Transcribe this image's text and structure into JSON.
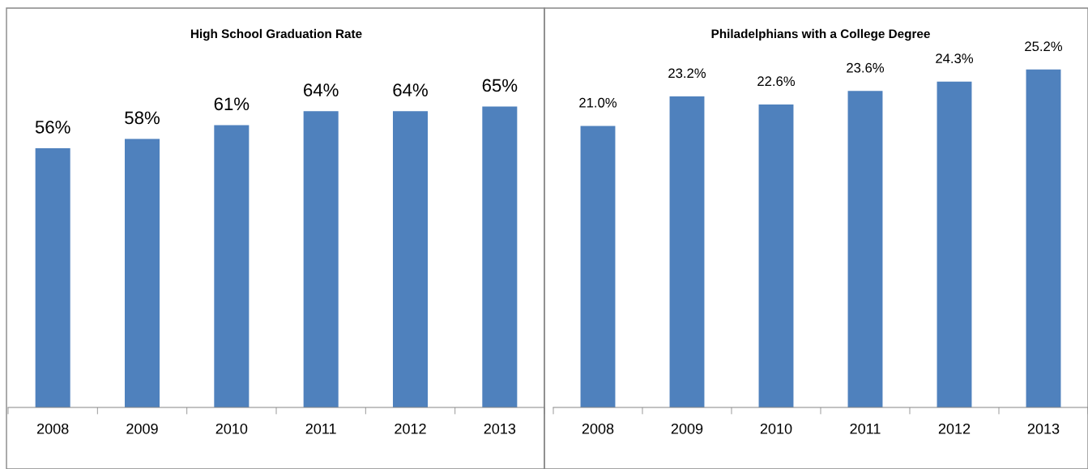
{
  "chart_data": [
    {
      "type": "bar",
      "title": "High School Graduation Rate",
      "categories": [
        "2008",
        "2009",
        "2010",
        "2011",
        "2012",
        "2013"
      ],
      "values": [
        56,
        58,
        61,
        64,
        64,
        65
      ],
      "value_labels": [
        "56%",
        "58%",
        "61%",
        "64%",
        "64%",
        "65%"
      ],
      "color": "#4f81bd",
      "tick_labels": "x"
    },
    {
      "type": "bar",
      "title": "Philadelphians with a College Degree",
      "categories": [
        "2008",
        "2009",
        "2010",
        "2011",
        "2012",
        "2013"
      ],
      "values": [
        21.0,
        23.2,
        22.6,
        23.6,
        24.3,
        25.2
      ],
      "value_labels": [
        "21.0%",
        "23.2%",
        "22.6%",
        "23.6%",
        "24.3%",
        "25.2%"
      ],
      "color": "#4f81bd",
      "tick_labels": "x"
    }
  ]
}
